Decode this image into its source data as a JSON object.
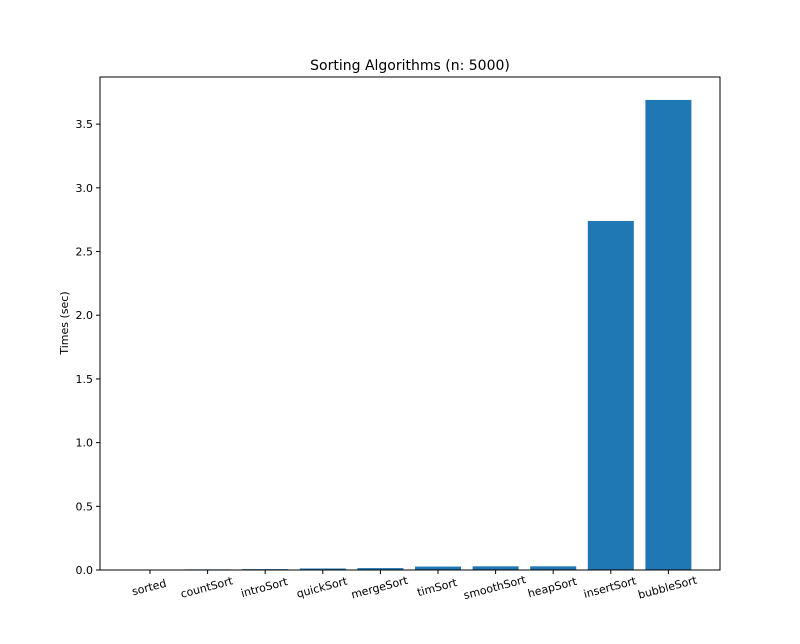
{
  "chart_data": {
    "type": "bar",
    "title": "Sorting Algorithms (n: 5000)",
    "xlabel": "",
    "ylabel": "Times (sec)",
    "categories": [
      "sorted",
      "countSort",
      "introSort",
      "quickSort",
      "mergeSort",
      "timSort",
      "smoothSort",
      "heapSort",
      "insertSort",
      "bubbleSort"
    ],
    "values": [
      0.001,
      0.005,
      0.007,
      0.012,
      0.015,
      0.027,
      0.029,
      0.029,
      2.74,
      3.69
    ],
    "ylim": [
      0,
      3.87
    ],
    "yticks": [
      0.0,
      0.5,
      1.0,
      1.5,
      2.0,
      2.5,
      3.0,
      3.5
    ],
    "ytick_labels": [
      "0.0",
      "0.5",
      "1.0",
      "1.5",
      "2.0",
      "2.5",
      "3.0",
      "3.5"
    ],
    "bar_color": "#1f77b4",
    "grid": false,
    "xtick_rotation_deg": -15
  }
}
